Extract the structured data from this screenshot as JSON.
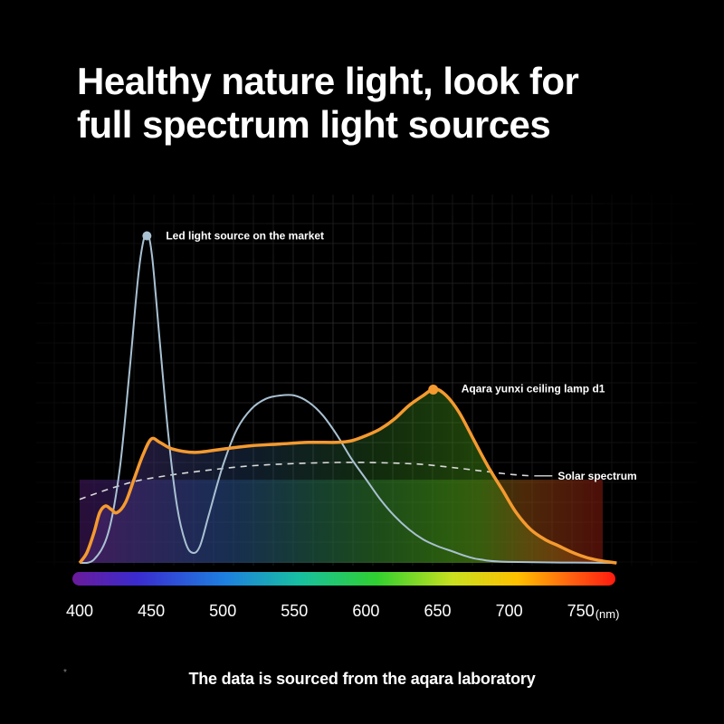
{
  "page": {
    "title_lines": [
      "Healthy nature light, look for",
      "full spectrum light sources"
    ],
    "footnote": "The data is sourced from the aqara laboratory",
    "asterisk": "*"
  },
  "chart_data": {
    "type": "line",
    "title": "Healthy nature light, look for full spectrum light sources",
    "xlabel": "",
    "ylabel": "",
    "x_unit": "(nm)",
    "xlim": [
      400,
      775
    ],
    "ylim": [
      0,
      1
    ],
    "x_ticks": [
      400,
      450,
      500,
      550,
      600,
      650,
      700,
      750
    ],
    "x_tick_labels": [
      "400",
      "450",
      "500",
      "550",
      "600",
      "650",
      "700",
      "750"
    ],
    "grid": true,
    "colors": {
      "led": "#a9c1d2",
      "aqara": "#f59a2f",
      "solar": "#d9d9d9"
    },
    "series": [
      {
        "name": "Led light source on the market",
        "key": "led",
        "style": "solid",
        "marker_at_x": 447,
        "points": [
          [
            400,
            0
          ],
          [
            410,
            0.01
          ],
          [
            420,
            0.09
          ],
          [
            428,
            0.28
          ],
          [
            435,
            0.58
          ],
          [
            441,
            0.86
          ],
          [
            445,
            0.97
          ],
          [
            448,
            0.98
          ],
          [
            451,
            0.9
          ],
          [
            456,
            0.66
          ],
          [
            462,
            0.38
          ],
          [
            468,
            0.17
          ],
          [
            474,
            0.06
          ],
          [
            479,
            0.03
          ],
          [
            484,
            0.05
          ],
          [
            490,
            0.14
          ],
          [
            500,
            0.29
          ],
          [
            510,
            0.4
          ],
          [
            520,
            0.46
          ],
          [
            530,
            0.49
          ],
          [
            540,
            0.5
          ],
          [
            550,
            0.5
          ],
          [
            560,
            0.48
          ],
          [
            570,
            0.44
          ],
          [
            580,
            0.38
          ],
          [
            590,
            0.31
          ],
          [
            600,
            0.25
          ],
          [
            610,
            0.19
          ],
          [
            620,
            0.14
          ],
          [
            630,
            0.1
          ],
          [
            640,
            0.07
          ],
          [
            650,
            0.05
          ],
          [
            660,
            0.035
          ],
          [
            670,
            0.02
          ],
          [
            680,
            0.01
          ],
          [
            700,
            0.003
          ],
          [
            775,
            0
          ]
        ]
      },
      {
        "name": "Aqara yunxi ceiling lamp d1",
        "key": "aqara",
        "style": "solid",
        "marker_at_x": 647,
        "points": [
          [
            400,
            0
          ],
          [
            405,
            0.03
          ],
          [
            410,
            0.09
          ],
          [
            414,
            0.15
          ],
          [
            418,
            0.17
          ],
          [
            422,
            0.16
          ],
          [
            426,
            0.15
          ],
          [
            432,
            0.18
          ],
          [
            438,
            0.25
          ],
          [
            444,
            0.32
          ],
          [
            450,
            0.37
          ],
          [
            456,
            0.36
          ],
          [
            465,
            0.34
          ],
          [
            480,
            0.33
          ],
          [
            500,
            0.34
          ],
          [
            520,
            0.35
          ],
          [
            540,
            0.355
          ],
          [
            560,
            0.36
          ],
          [
            580,
            0.36
          ],
          [
            590,
            0.365
          ],
          [
            600,
            0.38
          ],
          [
            610,
            0.4
          ],
          [
            620,
            0.43
          ],
          [
            630,
            0.47
          ],
          [
            640,
            0.5
          ],
          [
            648,
            0.52
          ],
          [
            656,
            0.5
          ],
          [
            665,
            0.45
          ],
          [
            675,
            0.37
          ],
          [
            685,
            0.29
          ],
          [
            695,
            0.22
          ],
          [
            705,
            0.15
          ],
          [
            715,
            0.1
          ],
          [
            725,
            0.07
          ],
          [
            735,
            0.05
          ],
          [
            745,
            0.03
          ],
          [
            755,
            0.015
          ],
          [
            765,
            0.006
          ],
          [
            775,
            0
          ]
        ]
      },
      {
        "name": "Solar spectrum",
        "key": "solar",
        "style": "dashed",
        "points": [
          [
            400,
            0.19
          ],
          [
            420,
            0.22
          ],
          [
            440,
            0.245
          ],
          [
            460,
            0.26
          ],
          [
            480,
            0.272
          ],
          [
            500,
            0.282
          ],
          [
            520,
            0.29
          ],
          [
            540,
            0.295
          ],
          [
            560,
            0.298
          ],
          [
            580,
            0.3
          ],
          [
            600,
            0.3
          ],
          [
            620,
            0.298
          ],
          [
            640,
            0.294
          ],
          [
            660,
            0.285
          ],
          [
            680,
            0.275
          ],
          [
            700,
            0.265
          ],
          [
            715,
            0.26
          ]
        ]
      }
    ],
    "legend_placement": "inline-labels"
  }
}
